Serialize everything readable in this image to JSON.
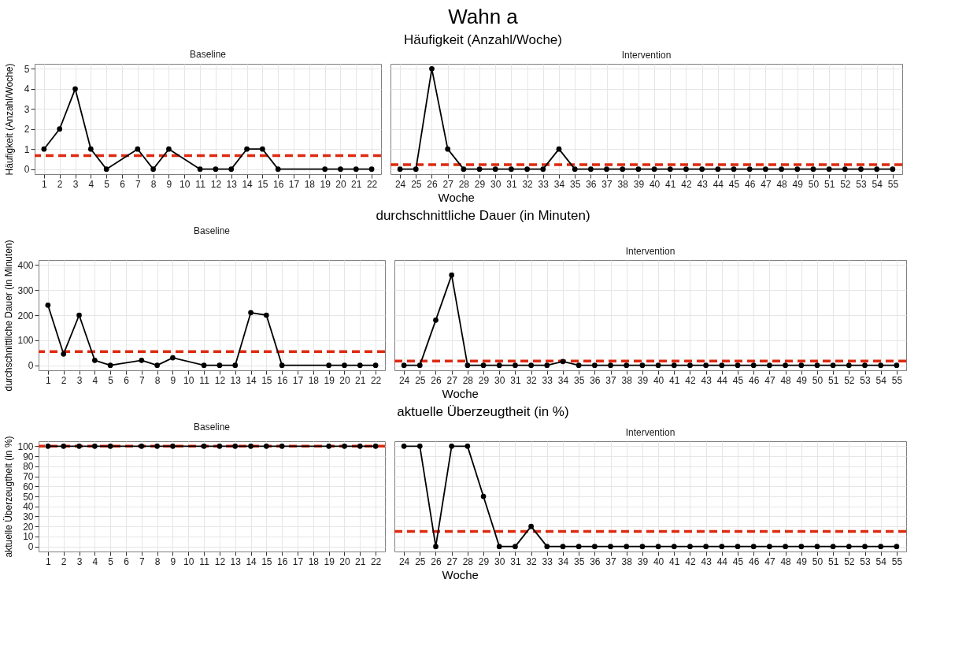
{
  "chart_data": [
    {
      "type": "line",
      "title": "Baseline",
      "annotations": [
        "Wahn a",
        "Häufigkeit (Anzahl/Woche)"
      ],
      "ylabel": "Häufigkeit (Anzahl/Woche)",
      "x": [
        1,
        2,
        3,
        4,
        5,
        7,
        8,
        9,
        11,
        12,
        13,
        14,
        15,
        16,
        19,
        20,
        21,
        22
      ],
      "series": [
        {
          "color": "#000000",
          "values": [
            1,
            2,
            4,
            1,
            0,
            1,
            0,
            1,
            0,
            0,
            0,
            1,
            1,
            0,
            0,
            0,
            0,
            0
          ]
        }
      ],
      "xlim": [
        0.4,
        22.6
      ],
      "xticks": [
        1,
        2,
        3,
        4,
        5,
        6,
        7,
        8,
        9,
        10,
        11,
        12,
        13,
        14,
        15,
        16,
        17,
        18,
        19,
        20,
        21,
        22
      ],
      "ylim": [
        -0.25,
        5.25
      ],
      "yticks": [
        0,
        1,
        2,
        3,
        4,
        5
      ],
      "ref_lines": [
        {
          "axis": "y",
          "value": 0.67,
          "color": "#dd2a10",
          "line_style": "dashed"
        }
      ],
      "grid": true,
      "marker": "circle"
    },
    {
      "type": "line",
      "title": "Intervention",
      "xlabel": "Woche",
      "x": [
        24,
        25,
        26,
        27,
        28,
        29,
        30,
        31,
        32,
        33,
        34,
        35,
        36,
        37,
        38,
        39,
        40,
        41,
        42,
        43,
        44,
        45,
        46,
        47,
        48,
        49,
        50,
        51,
        52,
        53,
        54,
        55
      ],
      "series": [
        {
          "color": "#000000",
          "values": [
            0,
            0,
            5,
            1,
            0,
            0,
            0,
            0,
            0,
            0,
            1,
            0,
            0,
            0,
            0,
            0,
            0,
            0,
            0,
            0,
            0,
            0,
            0,
            0,
            0,
            0,
            0,
            0,
            0,
            0,
            0,
            0
          ]
        }
      ],
      "xlim": [
        23.4,
        55.6
      ],
      "xticks": [
        24,
        25,
        26,
        27,
        28,
        29,
        30,
        31,
        32,
        33,
        34,
        35,
        36,
        37,
        38,
        39,
        40,
        41,
        42,
        43,
        44,
        45,
        46,
        47,
        48,
        49,
        50,
        51,
        52,
        53,
        54,
        55
      ],
      "ylim": [
        -0.25,
        5.25
      ],
      "yticks": [
        0,
        1,
        2,
        3,
        4,
        5
      ],
      "tick_labels": "x",
      "ref_lines": [
        {
          "axis": "y",
          "value": 0.22,
          "color": "#dd2a10",
          "line_style": "dashed"
        }
      ],
      "grid": true,
      "marker": "circle"
    },
    {
      "type": "line",
      "title": "Baseline",
      "annotations": [
        "durchschnittliche Dauer (in Minuten)"
      ],
      "ylabel": "durchschnittliche Dauer (in Minuten)",
      "x": [
        1,
        2,
        3,
        4,
        5,
        7,
        8,
        9,
        11,
        12,
        13,
        14,
        15,
        16,
        19,
        20,
        21,
        22
      ],
      "series": [
        {
          "color": "#000000",
          "values": [
            240,
            45,
            200,
            20,
            0,
            20,
            0,
            30,
            0,
            0,
            0,
            210,
            200,
            0,
            0,
            0,
            0,
            0
          ]
        }
      ],
      "xlim": [
        0.4,
        22.6
      ],
      "xticks": [
        1,
        2,
        3,
        4,
        5,
        6,
        7,
        8,
        9,
        10,
        11,
        12,
        13,
        14,
        15,
        16,
        17,
        18,
        19,
        20,
        21,
        22
      ],
      "ylim": [
        -20,
        420
      ],
      "yticks": [
        0,
        100,
        200,
        300,
        400
      ],
      "ref_lines": [
        {
          "axis": "y",
          "value": 55,
          "color": "#dd2a10",
          "line_style": "dashed"
        }
      ],
      "grid": true,
      "marker": "circle"
    },
    {
      "type": "line",
      "title": "Intervention",
      "xlabel": "Woche",
      "x": [
        24,
        25,
        26,
        27,
        28,
        29,
        30,
        31,
        32,
        33,
        34,
        35,
        36,
        37,
        38,
        39,
        40,
        41,
        42,
        43,
        44,
        45,
        46,
        47,
        48,
        49,
        50,
        51,
        52,
        53,
        54,
        55
      ],
      "series": [
        {
          "color": "#000000",
          "values": [
            0,
            0,
            180,
            360,
            0,
            0,
            0,
            0,
            0,
            0,
            15,
            0,
            0,
            0,
            0,
            0,
            0,
            0,
            0,
            0,
            0,
            0,
            0,
            0,
            0,
            0,
            0,
            0,
            0,
            0,
            0,
            0
          ]
        }
      ],
      "xlim": [
        23.4,
        55.6
      ],
      "xticks": [
        24,
        25,
        26,
        27,
        28,
        29,
        30,
        31,
        32,
        33,
        34,
        35,
        36,
        37,
        38,
        39,
        40,
        41,
        42,
        43,
        44,
        45,
        46,
        47,
        48,
        49,
        50,
        51,
        52,
        53,
        54,
        55
      ],
      "ylim": [
        -20,
        420
      ],
      "yticks": [
        0,
        100,
        200,
        300,
        400
      ],
      "tick_labels": "x",
      "ref_lines": [
        {
          "axis": "y",
          "value": 17,
          "color": "#dd2a10",
          "line_style": "dashed"
        }
      ],
      "grid": true,
      "marker": "circle"
    },
    {
      "type": "line",
      "title": "Baseline",
      "annotations": [
        "aktuelle Überzeugtheit (in %)"
      ],
      "ylabel": "aktuelle Überzeugtheit (in %)",
      "x": [
        1,
        2,
        3,
        4,
        5,
        7,
        8,
        9,
        11,
        12,
        13,
        14,
        15,
        16,
        19,
        20,
        21,
        22
      ],
      "series": [
        {
          "color": "#000000",
          "values": [
            100,
            100,
            100,
            100,
            100,
            100,
            100,
            100,
            100,
            100,
            100,
            100,
            100,
            100,
            100,
            100,
            100,
            100
          ]
        }
      ],
      "xlim": [
        0.4,
        22.6
      ],
      "xticks": [
        1,
        2,
        3,
        4,
        5,
        6,
        7,
        8,
        9,
        10,
        11,
        12,
        13,
        14,
        15,
        16,
        17,
        18,
        19,
        20,
        21,
        22
      ],
      "ylim": [
        -5,
        105
      ],
      "yticks": [
        0,
        10,
        20,
        30,
        40,
        50,
        60,
        70,
        80,
        90,
        100
      ],
      "ref_lines": [
        {
          "axis": "y",
          "value": 100,
          "color": "#dd2a10",
          "line_style": "dashed"
        }
      ],
      "grid": true,
      "marker": "circle"
    },
    {
      "type": "line",
      "title": "Intervention",
      "xlabel": "Woche",
      "x": [
        24,
        25,
        26,
        27,
        28,
        29,
        30,
        31,
        32,
        33,
        34,
        35,
        36,
        37,
        38,
        39,
        40,
        41,
        42,
        43,
        44,
        45,
        46,
        47,
        48,
        49,
        50,
        51,
        52,
        53,
        54,
        55
      ],
      "series": [
        {
          "color": "#000000",
          "values": [
            100,
            100,
            0,
            100,
            100,
            50,
            0,
            0,
            20,
            0,
            0,
            0,
            0,
            0,
            0,
            0,
            0,
            0,
            0,
            0,
            0,
            0,
            0,
            0,
            0,
            0,
            0,
            0,
            0,
            0,
            0,
            0
          ]
        }
      ],
      "xlim": [
        23.4,
        55.6
      ],
      "xticks": [
        24,
        25,
        26,
        27,
        28,
        29,
        30,
        31,
        32,
        33,
        34,
        35,
        36,
        37,
        38,
        39,
        40,
        41,
        42,
        43,
        44,
        45,
        46,
        47,
        48,
        49,
        50,
        51,
        52,
        53,
        54,
        55
      ],
      "ylim": [
        -5,
        105
      ],
      "yticks": [
        0,
        10,
        20,
        30,
        40,
        50,
        60,
        70,
        80,
        90,
        100
      ],
      "tick_labels": "x",
      "ref_lines": [
        {
          "axis": "y",
          "value": 15,
          "color": "#dd2a10",
          "line_style": "dashed"
        }
      ],
      "grid": true,
      "marker": "circle"
    }
  ]
}
